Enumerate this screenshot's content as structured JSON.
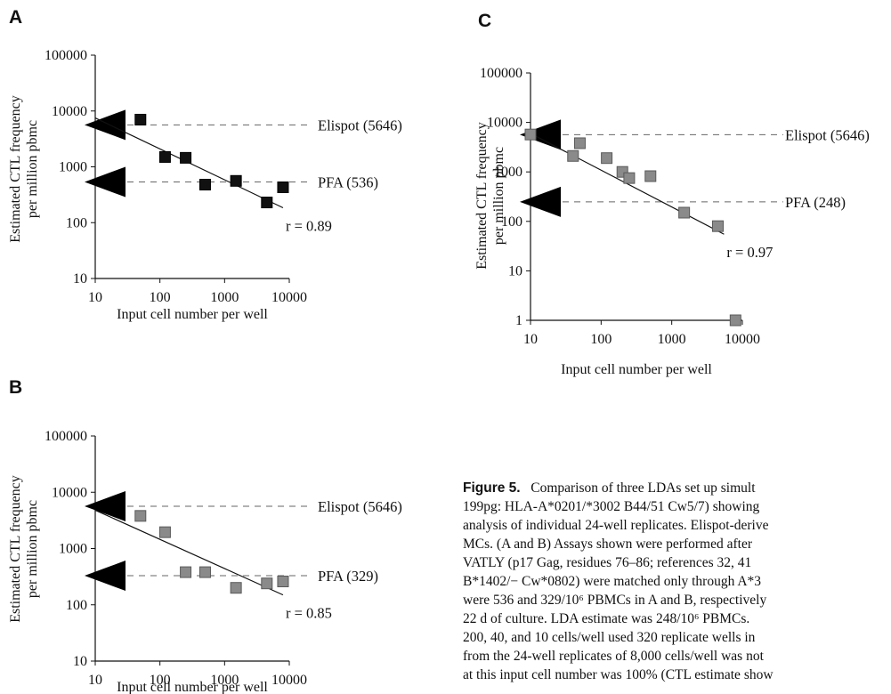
{
  "panels": [
    {
      "letter": "A"
    },
    {
      "letter": "B"
    },
    {
      "letter": "C"
    }
  ],
  "chart_data": [
    {
      "panel": "A",
      "type": "scatter",
      "x_scale": "log",
      "y_scale": "log",
      "xlabel": "Input cell number per well",
      "ylabel": [
        "Estimated CTL frequency",
        "per million pbmc"
      ],
      "xlim": [
        10,
        10000
      ],
      "ylim": [
        10,
        100000
      ],
      "xticks": [
        "10",
        "100",
        "1000",
        "10000"
      ],
      "yticks": [
        "10",
        "100",
        "1000",
        "10000",
        "100000"
      ],
      "marker_color": "#111111",
      "points": {
        "x": [
          50,
          120,
          250,
          500,
          1500,
          4500,
          8000
        ],
        "y": [
          7000,
          1500,
          1450,
          480,
          560,
          230,
          430
        ]
      },
      "fit_line": {
        "x": [
          10,
          8000
        ],
        "y": [
          7500,
          185
        ]
      },
      "fit_label": "r = 0.89",
      "reference_lines": [
        {
          "label": "Elispot (5646)",
          "value": 5646
        },
        {
          "label": "PFA (536)",
          "value": 536
        }
      ]
    },
    {
      "panel": "B",
      "type": "scatter",
      "x_scale": "log",
      "y_scale": "log",
      "xlabel": "Input cell number per well",
      "ylabel": [
        "Estimated CTL frequency",
        "per million pbmc"
      ],
      "xlim": [
        10,
        10000
      ],
      "ylim": [
        10,
        100000
      ],
      "xticks": [
        "10",
        "100",
        "1000",
        "10000"
      ],
      "yticks": [
        "10",
        "100",
        "1000",
        "10000",
        "100000"
      ],
      "marker_color": "#8a8a8a",
      "points": {
        "x": [
          50,
          120,
          250,
          500,
          1500,
          4500,
          8000
        ],
        "y": [
          3800,
          1950,
          380,
          380,
          200,
          240,
          260
        ]
      },
      "fit_line": {
        "x": [
          10,
          8000
        ],
        "y": [
          4800,
          150
        ]
      },
      "fit_label": "r = 0.85",
      "reference_lines": [
        {
          "label": "Elispot (5646)",
          "value": 5646
        },
        {
          "label": "PFA (329)",
          "value": 329
        }
      ]
    },
    {
      "panel": "C",
      "type": "scatter",
      "x_scale": "log",
      "y_scale": "log",
      "xlabel": "Input cell number per well",
      "ylabel": [
        "Estimated CTL frequency",
        "per million pbmc"
      ],
      "xlim": [
        10,
        10000
      ],
      "ylim": [
        1,
        100000
      ],
      "xticks": [
        "10",
        "100",
        "1000",
        "10000"
      ],
      "yticks": [
        "1",
        "10",
        "100",
        "1000",
        "10000",
        "100000"
      ],
      "marker_color": "#8a8a8a",
      "points": {
        "x": [
          10,
          40,
          50,
          120,
          200,
          250,
          500,
          1500,
          4500,
          8000
        ],
        "y": [
          5700,
          2100,
          3800,
          1900,
          1000,
          750,
          820,
          150,
          80,
          1
        ]
      },
      "fit_line": {
        "x": [
          10,
          5500
        ],
        "y": [
          6000,
          55
        ]
      },
      "fit_label": "r = 0.97",
      "reference_lines": [
        {
          "label": "Elispot (5646)",
          "value": 5646
        },
        {
          "label": "PFA (248)",
          "value": 248
        }
      ]
    }
  ],
  "caption": {
    "figure_label": "Figure 5.",
    "lines": [
      "   Comparison of three LDAs set up simult",
      "199pg: HLA-A*0201/*3002 B44/51 Cw5/7) showing",
      "analysis of individual 24-well replicates. Elispot-derive",
      "MCs. (A and B) Assays shown were performed after",
      "VATLY (p17 Gag, residues 76–86; references 32, 41",
      "B*1402/− Cw*0802) were matched only through A*3",
      "were 536 and 329/10⁶ PBMCs in A and B, respectively",
      "22 d of culture. LDA estimate was 248/10⁶ PBMCs.",
      "200, 40, and 10 cells/well used 320 replicate wells in",
      "from the 24-well replicates of 8,000 cells/well was not",
      "at this input cell number was 100% (CTL estimate show"
    ]
  }
}
